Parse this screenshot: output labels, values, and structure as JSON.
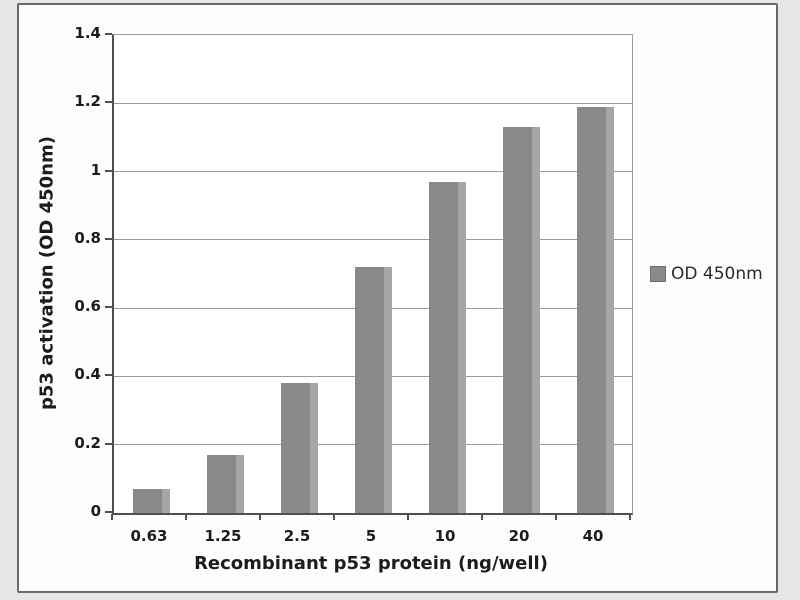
{
  "chart_data": {
    "type": "bar",
    "title": "",
    "categories": [
      "0.63",
      "1.25",
      "2.5",
      "5",
      "10",
      "20",
      "40"
    ],
    "series": [
      {
        "name": "OD 450nm",
        "values": [
          0.07,
          0.17,
          0.38,
          0.72,
          0.97,
          1.13,
          1.19
        ]
      }
    ],
    "xlabel": "Recombinant p53 protein (ng/well)",
    "ylabel": "p53 activation (OD 450nm)",
    "ylim": [
      0,
      1.4
    ],
    "yticks": [
      0,
      0.2,
      0.4,
      0.6,
      0.8,
      1,
      1.2,
      1.4
    ],
    "ytick_labels": [
      "0",
      "0.2",
      "0.4",
      "0.6",
      "0.8",
      "1",
      "1.2",
      "1.4"
    ],
    "grid": true,
    "legend": {
      "label": "OD 450nm",
      "position": "right"
    },
    "colors": {
      "bar": "#898989",
      "bar_highlight": "#a6a6a6",
      "gridline": "#9b9b9b",
      "axis": "#4f4f4f",
      "text": "#1c1c1c",
      "frame_border": "#6a6a6a",
      "plot_background": "#ffffff",
      "page_background": "#e6e6e6"
    }
  }
}
